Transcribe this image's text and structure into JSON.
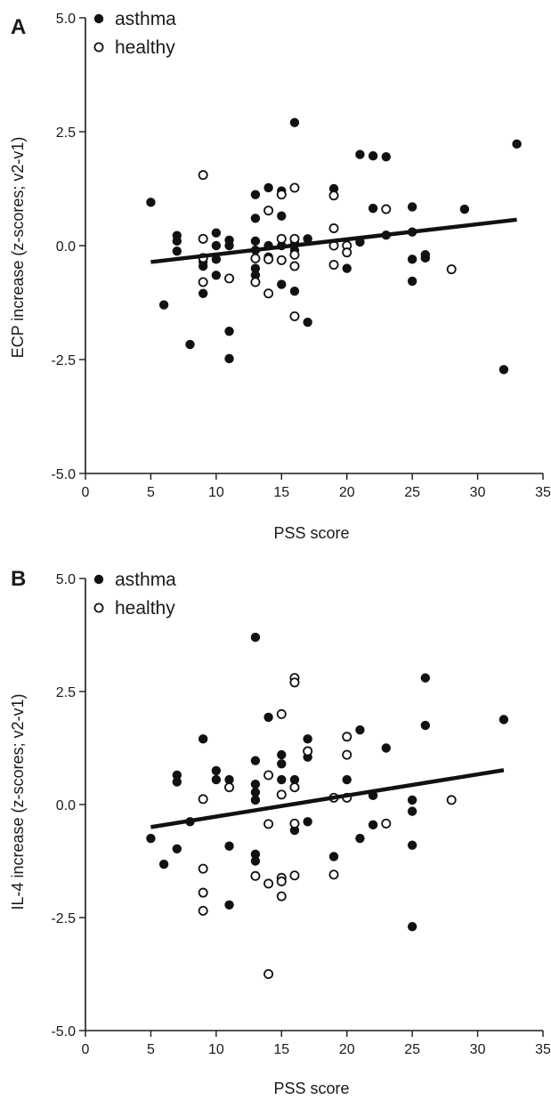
{
  "chart_data": [
    {
      "panel": "A",
      "type": "scatter",
      "xlabel": "PSS score",
      "ylabel": "ECP increase (z-scores; v2-v1)",
      "xlim": [
        0,
        35
      ],
      "ylim": [
        -5.0,
        5.0
      ],
      "xticks": [
        "0",
        "5",
        "10",
        "15",
        "20",
        "25",
        "30",
        "35"
      ],
      "yticks": [
        "-5.0",
        "-2.5",
        "0.0",
        "2.5",
        "5.0"
      ],
      "grid": false,
      "legend_position": "top-left",
      "series": [
        {
          "name": "asthma",
          "marker": "filled-circle",
          "points": [
            [
              5,
              0.95
            ],
            [
              6,
              -1.3
            ],
            [
              7,
              0.22
            ],
            [
              7,
              0.1
            ],
            [
              7,
              -0.12
            ],
            [
              8,
              -2.17
            ],
            [
              9,
              -0.35
            ],
            [
              9,
              -0.45
            ],
            [
              9,
              -1.05
            ],
            [
              10,
              0.28
            ],
            [
              10,
              0.0
            ],
            [
              10,
              -0.3
            ],
            [
              10,
              -0.65
            ],
            [
              11,
              0.12
            ],
            [
              11,
              0.0
            ],
            [
              11,
              -1.88
            ],
            [
              11,
              -2.48
            ],
            [
              13,
              1.12
            ],
            [
              13,
              0.6
            ],
            [
              13,
              0.1
            ],
            [
              13,
              -0.1
            ],
            [
              13,
              -0.5
            ],
            [
              13,
              -0.65
            ],
            [
              14,
              1.27
            ],
            [
              14,
              0.0
            ],
            [
              14,
              -0.25
            ],
            [
              15,
              1.2
            ],
            [
              15,
              0.65
            ],
            [
              15,
              0.0
            ],
            [
              15,
              -0.85
            ],
            [
              16,
              2.7
            ],
            [
              16,
              0.05
            ],
            [
              16,
              -0.1
            ],
            [
              16,
              -1.0
            ],
            [
              17,
              0.15
            ],
            [
              17,
              -1.68
            ],
            [
              19,
              1.25
            ],
            [
              20,
              0.0
            ],
            [
              20,
              -0.5
            ],
            [
              21,
              2.0
            ],
            [
              21,
              0.08
            ],
            [
              22,
              1.97
            ],
            [
              22,
              0.82
            ],
            [
              23,
              1.95
            ],
            [
              23,
              0.23
            ],
            [
              25,
              0.85
            ],
            [
              25,
              0.3
            ],
            [
              25,
              -0.3
            ],
            [
              25,
              -0.78
            ],
            [
              26,
              -0.2
            ],
            [
              26,
              -0.27
            ],
            [
              29,
              0.8
            ],
            [
              32,
              -2.72
            ],
            [
              33,
              2.23
            ]
          ]
        },
        {
          "name": "healthy",
          "marker": "open-circle",
          "points": [
            [
              9,
              1.55
            ],
            [
              9,
              0.15
            ],
            [
              9,
              -0.27
            ],
            [
              9,
              -0.8
            ],
            [
              11,
              -0.72
            ],
            [
              13,
              -0.28
            ],
            [
              13,
              -0.8
            ],
            [
              14,
              0.77
            ],
            [
              14,
              -0.3
            ],
            [
              14,
              -1.05
            ],
            [
              15,
              1.12
            ],
            [
              15,
              0.15
            ],
            [
              15,
              -0.32
            ],
            [
              16,
              1.27
            ],
            [
              16,
              0.15
            ],
            [
              16,
              -0.2
            ],
            [
              16,
              -0.45
            ],
            [
              16,
              -1.55
            ],
            [
              19,
              1.1
            ],
            [
              19,
              0.38
            ],
            [
              19,
              0.0
            ],
            [
              19,
              -0.42
            ],
            [
              20,
              0.0
            ],
            [
              20,
              -0.15
            ],
            [
              23,
              0.8
            ],
            [
              28,
              -0.52
            ]
          ]
        }
      ],
      "trend_line": {
        "x": [
          5,
          33
        ],
        "y": [
          -0.36,
          0.57
        ]
      }
    },
    {
      "panel": "B",
      "type": "scatter",
      "xlabel": "PSS score",
      "ylabel": "IL-4 increase (z-scores; v2-v1)",
      "xlim": [
        0,
        35
      ],
      "ylim": [
        -5.0,
        5.0
      ],
      "xticks": [
        "0",
        "5",
        "10",
        "15",
        "20",
        "25",
        "30",
        "35"
      ],
      "yticks": [
        "-5.0",
        "-2.5",
        "0.0",
        "2.5",
        "5.0"
      ],
      "grid": false,
      "legend_position": "top-left",
      "series": [
        {
          "name": "asthma",
          "marker": "filled-circle",
          "points": [
            [
              5,
              -0.75
            ],
            [
              6,
              -1.32
            ],
            [
              7,
              0.65
            ],
            [
              7,
              0.5
            ],
            [
              7,
              -0.98
            ],
            [
              8,
              -0.38
            ],
            [
              9,
              1.45
            ],
            [
              10,
              0.75
            ],
            [
              10,
              0.55
            ],
            [
              11,
              0.55
            ],
            [
              11,
              -0.92
            ],
            [
              11,
              -2.22
            ],
            [
              13,
              3.7
            ],
            [
              13,
              0.97
            ],
            [
              13,
              0.45
            ],
            [
              13,
              0.27
            ],
            [
              13,
              0.1
            ],
            [
              13,
              -1.1
            ],
            [
              13,
              -1.25
            ],
            [
              14,
              1.93
            ],
            [
              15,
              1.1
            ],
            [
              15,
              0.9
            ],
            [
              15,
              0.55
            ],
            [
              16,
              -0.57
            ],
            [
              16,
              0.55
            ],
            [
              17,
              1.45
            ],
            [
              17,
              1.05
            ],
            [
              17,
              -0.38
            ],
            [
              19,
              -1.15
            ],
            [
              20,
              0.55
            ],
            [
              21,
              1.65
            ],
            [
              21,
              -0.75
            ],
            [
              22,
              0.2
            ],
            [
              22,
              -0.45
            ],
            [
              23,
              1.25
            ],
            [
              25,
              0.1
            ],
            [
              25,
              -0.15
            ],
            [
              25,
              -0.9
            ],
            [
              25,
              -2.7
            ],
            [
              26,
              2.8
            ],
            [
              26,
              1.75
            ],
            [
              32,
              1.88
            ]
          ]
        },
        {
          "name": "healthy",
          "marker": "open-circle",
          "points": [
            [
              9,
              0.12
            ],
            [
              9,
              -1.42
            ],
            [
              9,
              -1.95
            ],
            [
              9,
              -2.35
            ],
            [
              11,
              0.38
            ],
            [
              13,
              -1.58
            ],
            [
              14,
              0.65
            ],
            [
              14,
              -0.43
            ],
            [
              14,
              -1.75
            ],
            [
              14,
              -3.75
            ],
            [
              15,
              2.0
            ],
            [
              15,
              0.22
            ],
            [
              15,
              -1.62
            ],
            [
              15,
              -1.7
            ],
            [
              15,
              -2.03
            ],
            [
              16,
              2.8
            ],
            [
              16,
              2.7
            ],
            [
              16,
              0.38
            ],
            [
              16,
              -0.42
            ],
            [
              16,
              -1.57
            ],
            [
              17,
              1.18
            ],
            [
              19,
              0.15
            ],
            [
              19,
              -1.55
            ],
            [
              20,
              1.5
            ],
            [
              20,
              1.1
            ],
            [
              20,
              0.15
            ],
            [
              23,
              -0.42
            ],
            [
              28,
              0.1
            ]
          ]
        }
      ],
      "trend_line": {
        "x": [
          5,
          32
        ],
        "y": [
          -0.5,
          0.76
        ]
      }
    }
  ]
}
